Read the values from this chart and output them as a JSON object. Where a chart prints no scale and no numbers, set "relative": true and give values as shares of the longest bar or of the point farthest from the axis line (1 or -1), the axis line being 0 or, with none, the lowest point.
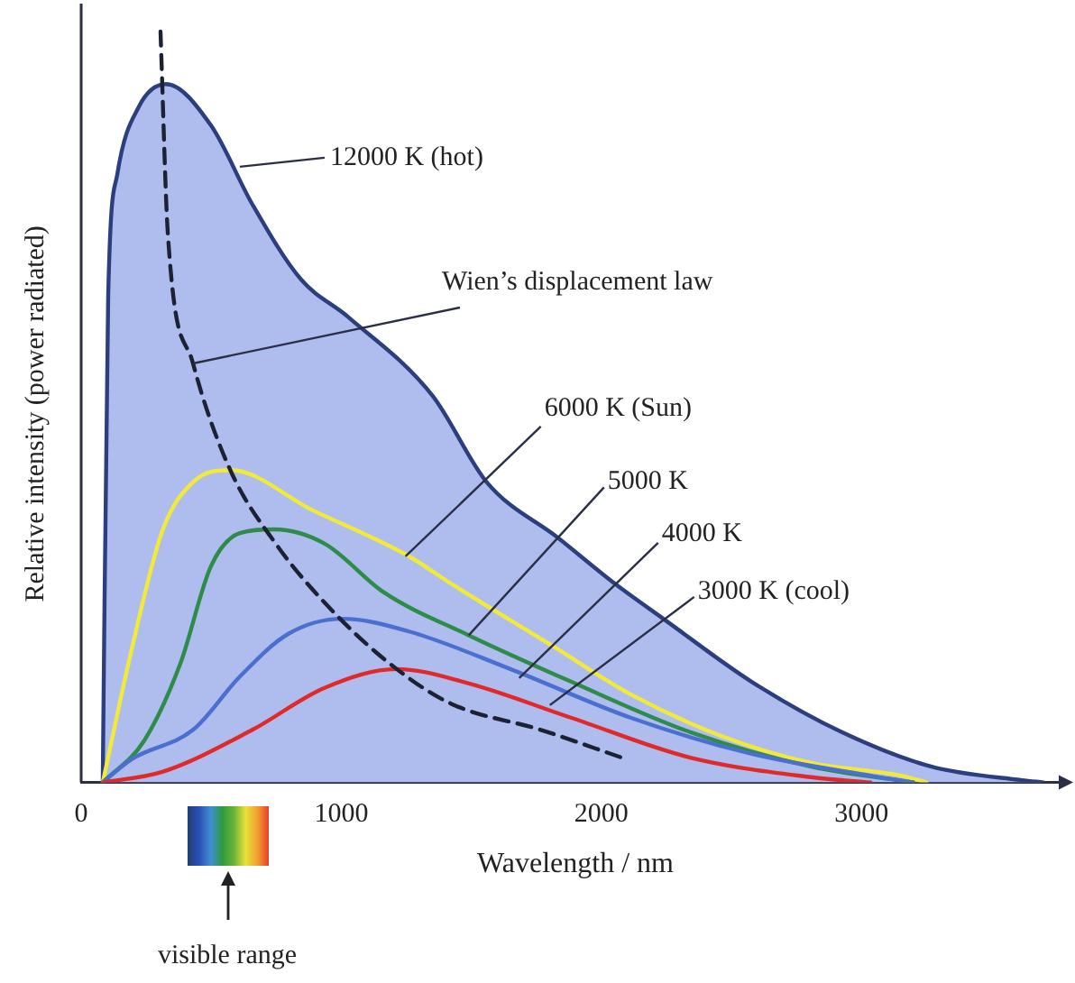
{
  "chart_data": {
    "type": "line",
    "relative": true,
    "xlabel": "Wavelength / nm",
    "ylabel": "Relative intensity (power radiated)",
    "xlim": [
      0,
      3800
    ],
    "xticks": [
      0,
      1000,
      2000,
      3000
    ],
    "grid": false,
    "legend": false,
    "marker": "none",
    "series": [
      {
        "type": "area",
        "color": "#2c3e7e",
        "x": [
          83,
          104,
          139,
          222,
          326,
          499,
          658,
          845,
          1026,
          1351,
          1559,
          1836,
          2058,
          2238,
          2578,
          2924,
          3270,
          3617,
          3700
        ],
        "values": [
          0,
          0.65,
          0.81,
          0.9,
          0.93,
          0.875,
          0.77,
          0.67,
          0.62,
          0.515,
          0.4,
          0.325,
          0.263,
          0.218,
          0.134,
          0.067,
          0.021,
          0.003,
          0
        ]
      },
      {
        "color": "#f2ea3a",
        "x": [
          83,
          194,
          312,
          430,
          575,
          887,
          1261,
          1421,
          1816,
          2114,
          2460,
          2807,
          3153,
          3250
        ],
        "values": [
          0,
          0.177,
          0.335,
          0.4,
          0.416,
          0.363,
          0.301,
          0.265,
          0.181,
          0.117,
          0.062,
          0.026,
          0.009,
          0
        ]
      },
      {
        "color": "#2e8b4a",
        "x": [
          83,
          243,
          381,
          499,
          610,
          742,
          936,
          1164,
          1490,
          1885,
          2342,
          2807,
          3200
        ],
        "values": [
          0,
          0.056,
          0.158,
          0.288,
          0.332,
          0.337,
          0.318,
          0.253,
          0.196,
          0.134,
          0.067,
          0.021,
          0
        ]
      },
      {
        "color": "#4a6fd0",
        "x": [
          83,
          194,
          430,
          610,
          797,
          1005,
          1261,
          1650,
          2114,
          2578,
          3035,
          3200
        ],
        "values": [
          0,
          0.031,
          0.07,
          0.141,
          0.198,
          0.218,
          0.201,
          0.151,
          0.086,
          0.038,
          0.009,
          0
        ]
      },
      {
        "color": "#e02a2a",
        "x": [
          83,
          312,
          658,
          936,
          1213,
          1469,
          1885,
          2342,
          2807,
          3035
        ],
        "values": [
          0,
          0.014,
          0.07,
          0.126,
          0.151,
          0.134,
          0.086,
          0.033,
          0.007,
          0
        ]
      },
      {
        "color": "#1c2233",
        "line_style": "dashed",
        "x": [
          305,
          333,
          430,
          568,
          748,
          984,
          1213,
          1421,
          1767,
          2079
        ],
        "values": [
          1,
          0.732,
          0.558,
          0.42,
          0.318,
          0.222,
          0.151,
          0.105,
          0.07,
          0.033
        ]
      }
    ],
    "annotations": [
      {
        "text": "12000 K (hot)",
        "x": 610,
        "y": 0.82
      },
      {
        "text": "Wien’s displacement law",
        "x": 430,
        "y": 0.558
      },
      {
        "text": "6000 K (Sun)",
        "x": 1247,
        "y": 0.301
      },
      {
        "text": "5000 K",
        "x": 1490,
        "y": 0.196
      },
      {
        "text": "4000 K",
        "x": 1684,
        "y": 0.139
      },
      {
        "text": "3000 K (cool)",
        "x": 1802,
        "y": 0.103
      },
      "visible range"
    ]
  }
}
